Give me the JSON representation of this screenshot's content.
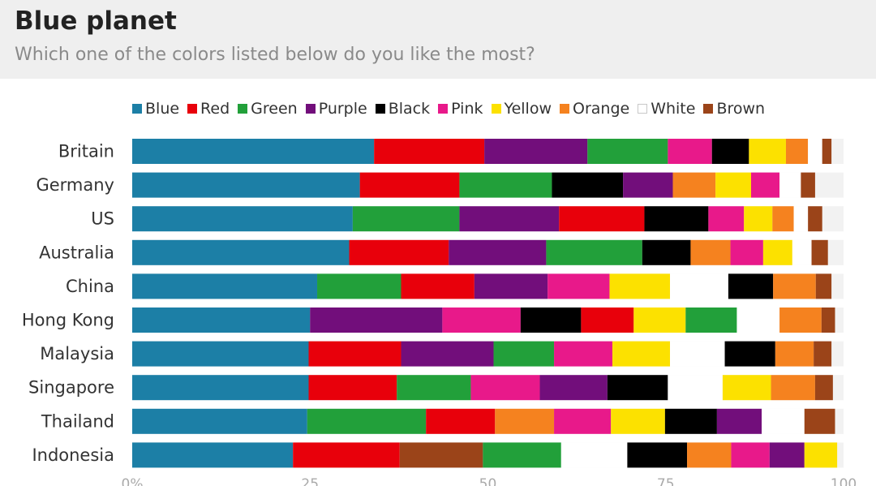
{
  "header": {
    "title": "Blue planet",
    "subtitle": "Which one of the colors listed below do you like the most?"
  },
  "chart_data": {
    "type": "bar",
    "orientation": "horizontal",
    "stacked": true,
    "title": "Blue planet",
    "subtitle": "Which one of the colors listed below do you like the most?",
    "xlabel": "",
    "ylabel": "",
    "xlim": [
      0,
      100
    ],
    "xticks": [
      "0%",
      "25",
      "50",
      "75",
      "100"
    ],
    "legend_position": "top",
    "categories": [
      "Britain",
      "Germany",
      "US",
      "Australia",
      "China",
      "Hong Kong",
      "Malaysia",
      "Singapore",
      "Thailand",
      "Indonesia"
    ],
    "rows": [
      {
        "category": "Britain",
        "segments": [
          {
            "series": "Blue",
            "value": 34
          },
          {
            "series": "Red",
            "value": 15.5
          },
          {
            "series": "Purple",
            "value": 14.5
          },
          {
            "series": "Green",
            "value": 11.3
          },
          {
            "series": "Pink",
            "value": 6.2
          },
          {
            "series": "Black",
            "value": 5.2
          },
          {
            "series": "Yellow",
            "value": 5.2
          },
          {
            "series": "Orange",
            "value": 3.1
          },
          {
            "series": "White",
            "value": 2
          },
          {
            "series": "Brown",
            "value": 1.3
          }
        ]
      },
      {
        "category": "Germany",
        "segments": [
          {
            "series": "Blue",
            "value": 32
          },
          {
            "series": "Red",
            "value": 14
          },
          {
            "series": "Green",
            "value": 13
          },
          {
            "series": "Black",
            "value": 10
          },
          {
            "series": "Purple",
            "value": 7
          },
          {
            "series": "Orange",
            "value": 6
          },
          {
            "series": "Yellow",
            "value": 5
          },
          {
            "series": "Pink",
            "value": 4
          },
          {
            "series": "White",
            "value": 3
          },
          {
            "series": "Brown",
            "value": 2
          }
        ]
      },
      {
        "category": "US",
        "segments": [
          {
            "series": "Blue",
            "value": 31
          },
          {
            "series": "Green",
            "value": 15
          },
          {
            "series": "Purple",
            "value": 14
          },
          {
            "series": "Red",
            "value": 12
          },
          {
            "series": "Black",
            "value": 9
          },
          {
            "series": "Pink",
            "value": 5
          },
          {
            "series": "Yellow",
            "value": 4
          },
          {
            "series": "Orange",
            "value": 3
          },
          {
            "series": "White",
            "value": 2
          },
          {
            "series": "Brown",
            "value": 2
          }
        ]
      },
      {
        "category": "Australia",
        "segments": [
          {
            "series": "Blue",
            "value": 30.5
          },
          {
            "series": "Red",
            "value": 14
          },
          {
            "series": "Purple",
            "value": 13.7
          },
          {
            "series": "Green",
            "value": 13.5
          },
          {
            "series": "Black",
            "value": 6.8
          },
          {
            "series": "Orange",
            "value": 5.6
          },
          {
            "series": "Pink",
            "value": 4.6
          },
          {
            "series": "Yellow",
            "value": 4.1
          },
          {
            "series": "White",
            "value": 2.7
          },
          {
            "series": "Brown",
            "value": 2.3
          }
        ]
      },
      {
        "category": "China",
        "segments": [
          {
            "series": "Blue",
            "value": 26
          },
          {
            "series": "Green",
            "value": 11.8
          },
          {
            "series": "Red",
            "value": 10.3
          },
          {
            "series": "Purple",
            "value": 10.3
          },
          {
            "series": "Pink",
            "value": 8.7
          },
          {
            "series": "Yellow",
            "value": 8.5
          },
          {
            "series": "White",
            "value": 8.2
          },
          {
            "series": "Black",
            "value": 6.3
          },
          {
            "series": "Orange",
            "value": 6
          },
          {
            "series": "Brown",
            "value": 2.2
          }
        ]
      },
      {
        "category": "Hong Kong",
        "segments": [
          {
            "series": "Blue",
            "value": 25
          },
          {
            "series": "Purple",
            "value": 18.6
          },
          {
            "series": "Pink",
            "value": 11
          },
          {
            "series": "Black",
            "value": 8.5
          },
          {
            "series": "Red",
            "value": 7.4
          },
          {
            "series": "Yellow",
            "value": 7.3
          },
          {
            "series": "Green",
            "value": 7.2
          },
          {
            "series": "White",
            "value": 6
          },
          {
            "series": "Orange",
            "value": 5.9
          },
          {
            "series": "Brown",
            "value": 1.9
          }
        ]
      },
      {
        "category": "Malaysia",
        "segments": [
          {
            "series": "Blue",
            "value": 24.8
          },
          {
            "series": "Red",
            "value": 13
          },
          {
            "series": "Purple",
            "value": 13
          },
          {
            "series": "Green",
            "value": 8.5
          },
          {
            "series": "Pink",
            "value": 8.2
          },
          {
            "series": "Yellow",
            "value": 8.1
          },
          {
            "series": "White",
            "value": 7.7
          },
          {
            "series": "Black",
            "value": 7.1
          },
          {
            "series": "Orange",
            "value": 5.4
          },
          {
            "series": "Brown",
            "value": 2.5
          }
        ]
      },
      {
        "category": "Singapore",
        "segments": [
          {
            "series": "Blue",
            "value": 24.8
          },
          {
            "series": "Red",
            "value": 12.4
          },
          {
            "series": "Green",
            "value": 10.4
          },
          {
            "series": "Pink",
            "value": 9.7
          },
          {
            "series": "Purple",
            "value": 9.5
          },
          {
            "series": "Black",
            "value": 8.5
          },
          {
            "series": "White",
            "value": 7.7
          },
          {
            "series": "Yellow",
            "value": 6.8
          },
          {
            "series": "Orange",
            "value": 6.2
          },
          {
            "series": "Brown",
            "value": 2.5
          }
        ]
      },
      {
        "category": "Thailand",
        "segments": [
          {
            "series": "Blue",
            "value": 24.6
          },
          {
            "series": "Green",
            "value": 16.7
          },
          {
            "series": "Red",
            "value": 9.7
          },
          {
            "series": "Orange",
            "value": 8.3
          },
          {
            "series": "Pink",
            "value": 8
          },
          {
            "series": "Yellow",
            "value": 7.6
          },
          {
            "series": "Black",
            "value": 7.3
          },
          {
            "series": "Purple",
            "value": 6.3
          },
          {
            "series": "White",
            "value": 6
          },
          {
            "series": "Brown",
            "value": 4.3
          }
        ]
      },
      {
        "category": "Indonesia",
        "segments": [
          {
            "series": "Blue",
            "value": 22.6
          },
          {
            "series": "Red",
            "value": 15
          },
          {
            "series": "Brown",
            "value": 11.7
          },
          {
            "series": "Green",
            "value": 11
          },
          {
            "series": "White",
            "value": 9.3
          },
          {
            "series": "Black",
            "value": 8.4
          },
          {
            "series": "Orange",
            "value": 6.2
          },
          {
            "series": "Pink",
            "value": 5.4
          },
          {
            "series": "Purple",
            "value": 4.9
          },
          {
            "series": "Yellow",
            "value": 4.6
          }
        ]
      }
    ],
    "series": [
      {
        "name": "Blue",
        "color": "#1c7fa6"
      },
      {
        "name": "Red",
        "color": "#e8000b"
      },
      {
        "name": "Green",
        "color": "#22a03a"
      },
      {
        "name": "Purple",
        "color": "#720e7b"
      },
      {
        "name": "Black",
        "color": "#000000"
      },
      {
        "name": "Pink",
        "color": "#e8198a"
      },
      {
        "name": "Yellow",
        "color": "#fce100"
      },
      {
        "name": "Orange",
        "color": "#f5821f"
      },
      {
        "name": "White",
        "color": "#ffffff"
      },
      {
        "name": "Brown",
        "color": "#9b4419"
      }
    ],
    "track_color": "#f2f2f2",
    "grid": false
  }
}
